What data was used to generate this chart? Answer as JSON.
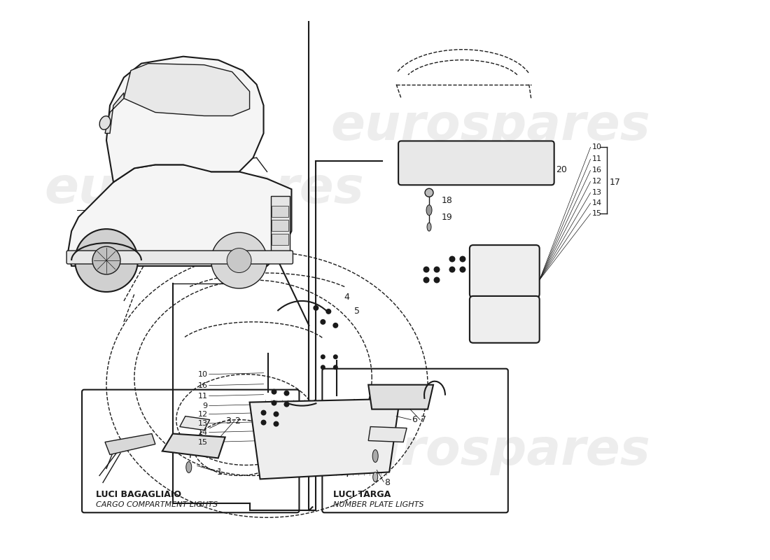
{
  "background_color": "#ffffff",
  "line_color": "#1a1a1a",
  "watermark_text": "eurospares",
  "watermark_color": "#cccccc",
  "watermark_alpha": 0.35,
  "fig_width": 11.0,
  "fig_height": 8.0,
  "dpi": 100,
  "labels": {
    "cargo_title": "LUCI BAGAGLIAIO",
    "cargo_subtitle": "CARGO COMPARTMENT LIGHTS",
    "plate_title": "LUCI TARGA",
    "plate_subtitle": "NUMBER PLATE LIGHTS"
  },
  "part_numbers_left": [
    "10",
    "16",
    "11",
    "9",
    "12",
    "13",
    "14",
    "15"
  ],
  "part_numbers_right": [
    "10",
    "11",
    "16",
    "12",
    "13",
    "14",
    "15"
  ],
  "part_number_17": "17"
}
